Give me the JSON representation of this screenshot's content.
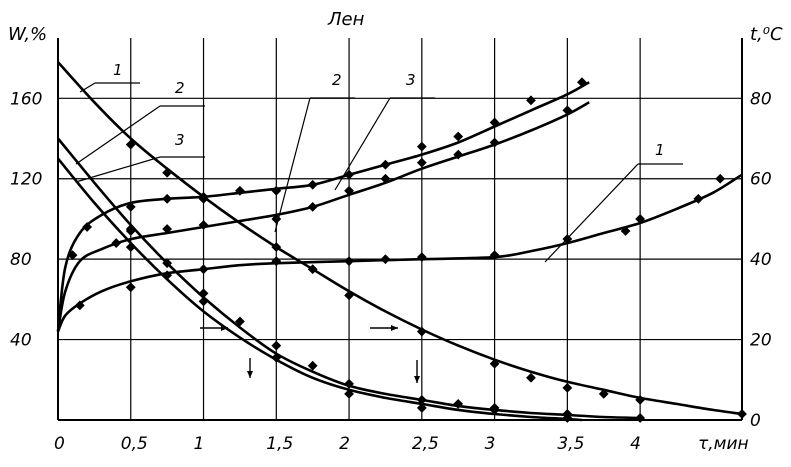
{
  "chart_data": {
    "type": "line",
    "title": "Лен",
    "xlabel": "τ,мин",
    "ylabel_left": "W,%",
    "ylabel_right": "t,⁰C",
    "xlim": [
      0,
      4.7
    ],
    "ylim_left": [
      0,
      190
    ],
    "ylim_right": [
      0,
      95
    ],
    "grid": true,
    "x_ticks": [
      "0",
      "0,5",
      "1",
      "1,5",
      "2",
      "2,5",
      "3",
      "3,5",
      "4"
    ],
    "y_left_ticks": [
      "40",
      "80",
      "120",
      "160"
    ],
    "y_right_ticks": [
      "0",
      "20",
      "40",
      "60",
      "80"
    ],
    "series": [
      {
        "name": "1",
        "axis": "left",
        "kind": "moisture",
        "x": [
          0,
          0.25,
          0.5,
          0.75,
          1.0,
          1.25,
          1.5,
          1.75,
          2.0,
          2.25,
          2.5,
          2.75,
          3.0,
          3.25,
          3.5,
          3.75,
          4.0,
          4.25,
          4.5,
          4.7
        ],
        "y": [
          178,
          158,
          140,
          125,
          111,
          98,
          86,
          75,
          64,
          54,
          45,
          37,
          30,
          24,
          19,
          15,
          11,
          8,
          5,
          3
        ],
        "markers_x": [
          0.5,
          0.75,
          1.0,
          1.5,
          1.75,
          2.0,
          2.5,
          3.0,
          3.25,
          3.5,
          3.75,
          4.0,
          4.7
        ],
        "markers_y": [
          137,
          123,
          110,
          86,
          75,
          62,
          44,
          28,
          21,
          16,
          13,
          10,
          3
        ]
      },
      {
        "name": "2",
        "axis": "left",
        "kind": "moisture",
        "x": [
          0,
          0.25,
          0.5,
          0.75,
          1.0,
          1.25,
          1.5,
          1.75,
          2.0,
          2.25,
          2.5,
          2.75,
          3.0,
          3.25,
          3.5,
          3.75,
          4.0
        ],
        "y": [
          140,
          118,
          97,
          78,
          61,
          46,
          33,
          24,
          17,
          13,
          10,
          7,
          5,
          3.5,
          2.5,
          1.5,
          1
        ],
        "markers_x": [
          0.5,
          1.0,
          1.25,
          1.5,
          1.75,
          2.0,
          2.5,
          2.75,
          3.0,
          3.5,
          4.0
        ],
        "markers_y": [
          94,
          63,
          49,
          37,
          27,
          18,
          10,
          8,
          6,
          3,
          1
        ]
      },
      {
        "name": "3",
        "axis": "left",
        "kind": "moisture",
        "x": [
          0,
          0.25,
          0.5,
          0.75,
          1.0,
          1.25,
          1.5,
          1.75,
          2.0,
          2.25,
          2.5,
          2.75,
          3.0,
          3.25,
          3.5,
          3.6
        ],
        "y": [
          130,
          108,
          88,
          70,
          54,
          41,
          30,
          21,
          15,
          11,
          8,
          5,
          3,
          1.5,
          0.5,
          0
        ],
        "markers_x": [
          0.5,
          0.75,
          1.0,
          1.5,
          2.0,
          2.5,
          3.0,
          3.5
        ],
        "markers_y": [
          86,
          78,
          59,
          31,
          13,
          6,
          5,
          1
        ]
      },
      {
        "name": "1",
        "axis": "right",
        "kind": "temperature",
        "x": [
          0,
          0.05,
          0.15,
          0.3,
          0.5,
          0.75,
          1.0,
          1.25,
          1.5,
          2.0,
          2.5,
          3.0,
          3.25,
          3.5,
          3.75,
          4.0,
          4.25,
          4.5,
          4.7
        ],
        "y": [
          22,
          26,
          29,
          32,
          34.5,
          36.5,
          37.5,
          38.5,
          39,
          39.5,
          40,
          40.5,
          42,
          44,
          46.5,
          49,
          52.5,
          56.5,
          61
        ],
        "markers_x": [
          0.15,
          0.5,
          0.75,
          1.0,
          1.5,
          2.0,
          2.25,
          2.5,
          3.0,
          3.5,
          3.9,
          4.0,
          4.4,
          4.55
        ],
        "markers_y": [
          28.5,
          33,
          36,
          37.5,
          39.5,
          39.5,
          40,
          40.5,
          41,
          45,
          47,
          50,
          55,
          60
        ]
      },
      {
        "name": "2",
        "axis": "right",
        "kind": "temperature",
        "x": [
          0,
          0.05,
          0.15,
          0.3,
          0.5,
          0.75,
          1.0,
          1.25,
          1.5,
          1.75,
          2.0,
          2.25,
          2.5,
          2.75,
          3.0,
          3.25,
          3.5,
          3.65
        ],
        "y": [
          22,
          32,
          39.5,
          42.5,
          45,
          46.5,
          48,
          49.5,
          51,
          53,
          56,
          59,
          62.5,
          65.5,
          68.5,
          72,
          76,
          79
        ],
        "markers_x": [
          0.1,
          0.4,
          0.5,
          0.75,
          1.0,
          1.5,
          1.75,
          2.0,
          2.25,
          2.5,
          2.75,
          3.0,
          3.5
        ],
        "markers_y": [
          41,
          44,
          47.5,
          47.5,
          48.5,
          50,
          53,
          57,
          60,
          64,
          66,
          69,
          77
        ]
      },
      {
        "name": "3",
        "axis": "right",
        "kind": "temperature",
        "x": [
          0,
          0.05,
          0.15,
          0.3,
          0.5,
          0.75,
          1.0,
          1.25,
          1.5,
          1.75,
          2.0,
          2.25,
          2.5,
          2.75,
          3.0,
          3.25,
          3.5,
          3.65
        ],
        "y": [
          22,
          38,
          46.5,
          51,
          54,
          55,
          55.5,
          56.5,
          57.5,
          58.5,
          61,
          63.5,
          66,
          69,
          73,
          77,
          81,
          84
        ],
        "markers_x": [
          0.2,
          0.5,
          0.75,
          1.0,
          1.25,
          1.5,
          1.75,
          2.0,
          2.25,
          2.5,
          2.75,
          3.0,
          3.25,
          3.6
        ],
        "markers_y": [
          48,
          53,
          55,
          55.5,
          57,
          57,
          58.5,
          61,
          63.5,
          68,
          70.5,
          74,
          79.5,
          84
        ]
      }
    ],
    "moisture_curve_labels": [
      "1",
      "2",
      "3"
    ],
    "temperature_curve_labels": [
      "2",
      "3",
      "1"
    ]
  }
}
